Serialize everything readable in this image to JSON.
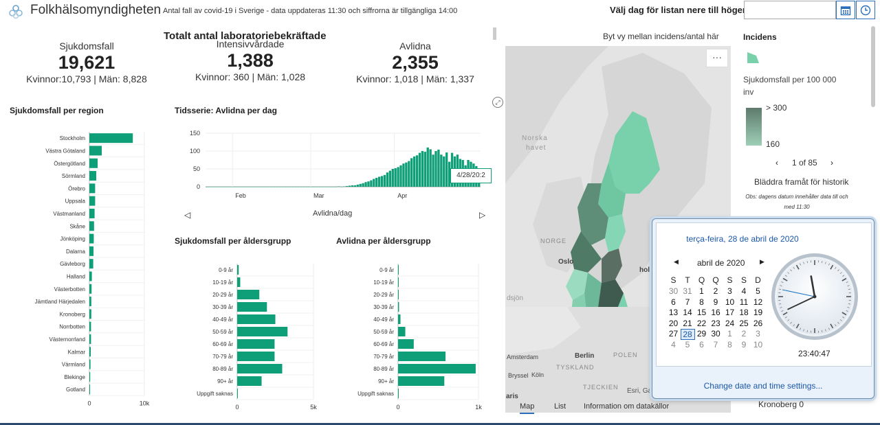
{
  "header": {
    "title": "Folkhälsomyndigheten",
    "subtitle": "Antal fall av covid-19 i Sverige - data uppdateras 11:30 och siffrorna är tillgängliga 14:00",
    "date_prompt": "Välj dag för listan nere till höger:",
    "date_value": ""
  },
  "stats": {
    "panel_title": "Totalt antal laboratoriebekräftade",
    "cases": {
      "label": "Sjukdomsfall",
      "value": "19,621",
      "detail": "Kvinnor:10,793 | Män: 8,828"
    },
    "icu": {
      "label": "Intensivvårdade",
      "value": "1,388",
      "detail": "Kvinnor: 360 | Män: 1,028"
    },
    "deaths": {
      "label": "Avlidna",
      "value": "2,355",
      "detail": "Kvinnor: 1,018 | Män: 1,337"
    }
  },
  "region_chart_title": "Sjukdomsfall per region",
  "timeseries_title": "Tidsserie: Avlidna per dag",
  "timeseries_footer": "Avlidna/dag",
  "timeseries_tooltip": "4/28/20:2",
  "age_cases_title": "Sjukdomsfall per åldersgrupp",
  "age_deaths_title": "Avlidna per åldersgrupp",
  "chart_data": [
    {
      "type": "bar",
      "orientation": "horizontal",
      "title": "Sjukdomsfall per region",
      "categories": [
        "Stockholm",
        "Västra Götaland",
        "Östergötland",
        "Sörmland",
        "Örebro",
        "Uppsala",
        "Västmanland",
        "Skåne",
        "Jönköping",
        "Dalarna",
        "Gävleborg",
        "Halland",
        "Västerbotten",
        "Jämtland Härjedalen",
        "Kronoberg",
        "Norrbotten",
        "Västernorrland",
        "Kalmar",
        "Värmland",
        "Blekinge",
        "Gotland"
      ],
      "values": [
        7900,
        2250,
        1500,
        1250,
        1050,
        1050,
        950,
        850,
        800,
        750,
        700,
        450,
        400,
        350,
        350,
        300,
        300,
        250,
        200,
        150,
        30
      ],
      "xlim": [
        0,
        10000
      ],
      "xticks": [
        "0",
        "10k"
      ],
      "color": "#0e9e78"
    },
    {
      "type": "bar",
      "title": "Tidsserie: Avlidna per dag",
      "x_start": "2020-01-22",
      "values": [
        0,
        0,
        0,
        0,
        0,
        0,
        0,
        0,
        0,
        0,
        0,
        0,
        0,
        0,
        0,
        0,
        0,
        0,
        0,
        0,
        0,
        0,
        0,
        0,
        0,
        0,
        0,
        0,
        0,
        0,
        0,
        0,
        0,
        0,
        0,
        0,
        0,
        0,
        0,
        0,
        0,
        0,
        0,
        0,
        0,
        0,
        0,
        0,
        0,
        1,
        0,
        1,
        2,
        3,
        4,
        4,
        6,
        8,
        10,
        13,
        15,
        18,
        22,
        25,
        28,
        30,
        33,
        40,
        45,
        50,
        52,
        55,
        60,
        65,
        68,
        72,
        80,
        85,
        88,
        95,
        100,
        98,
        110,
        105,
        90,
        100,
        104,
        90,
        85,
        96,
        70,
        95,
        85,
        90,
        78,
        75,
        60,
        75,
        70,
        65,
        58,
        50
      ],
      "xticks": [
        "Feb",
        "Mar",
        "Apr"
      ],
      "yticks": [
        0,
        50,
        100,
        150
      ],
      "ylim": [
        0,
        150
      ],
      "color": "#0e9e78"
    },
    {
      "type": "bar",
      "orientation": "horizontal",
      "title": "Sjukdomsfall per åldersgrupp",
      "categories": [
        "0-9 år",
        "10-19 år",
        "20-29 år",
        "30-39 år",
        "40-49 år",
        "50-59 år",
        "60-69 år",
        "70-79 år",
        "80-89 år",
        "90+ år",
        "Uppgift saknas"
      ],
      "values": [
        100,
        200,
        1450,
        1950,
        2500,
        3300,
        2450,
        2450,
        2950,
        1600,
        10
      ],
      "xlim": [
        0,
        5000
      ],
      "xticks": [
        "0",
        "5k"
      ],
      "color": "#0e9e78"
    },
    {
      "type": "bar",
      "orientation": "horizontal",
      "title": "Avlidna per åldersgrupp",
      "categories": [
        "0-9 år",
        "10-19 år",
        "20-29 år",
        "30-39 år",
        "40-49 år",
        "50-59 år",
        "60-69 år",
        "70-79 år",
        "80-89 år",
        "90+ år",
        "Uppgift saknas"
      ],
      "values": [
        1,
        1,
        8,
        12,
        30,
        90,
        195,
        590,
        965,
        575,
        0
      ],
      "xlim": [
        0,
        1000
      ],
      "xticks": [
        "0",
        "1k"
      ],
      "color": "#0e9e78"
    }
  ],
  "map": {
    "hint": "Byt vy mellan incidens/antal här",
    "menu": "···",
    "labels": {
      "norska_havet_1": "Norska",
      "norska_havet_2": "havet",
      "norge": "NORGE",
      "oslo": "Oslo",
      "holm": "holm",
      "sjon": "dsjön",
      "amsterdam": "Amsterdam",
      "berlin": "Berlin",
      "polen": "POLEN",
      "tyskland": "TYSKLAND",
      "bryssel": "Bryssel",
      "koln": "Köln",
      "tjeckien": "TJECKIEN",
      "aris": "aris",
      "esri": "Esri, Ga"
    },
    "tabs": [
      "Map",
      "List",
      "Information om datakällor"
    ]
  },
  "legend": {
    "title": "Incidens",
    "description": "Sjukdomsfall per 100 000 inv",
    "high": "> 300",
    "low": "160",
    "pager": "1 of 85",
    "history_note": "Bläddra framåt för historik",
    "obs": "Obs: dagens datum innehåller data till och med 11:30",
    "list_row": "Kronoberg  0"
  },
  "datetime_popup": {
    "long_date": "terça-feira, 28 de abril de 2020",
    "month_label": "abril de 2020",
    "weekdays": [
      "S",
      "T",
      "Q",
      "Q",
      "S",
      "S",
      "D"
    ],
    "weeks": [
      [
        "30",
        "31",
        "1",
        "2",
        "3",
        "4",
        "5"
      ],
      [
        "6",
        "7",
        "8",
        "9",
        "10",
        "11",
        "12"
      ],
      [
        "13",
        "14",
        "15",
        "16",
        "17",
        "18",
        "19"
      ],
      [
        "20",
        "21",
        "22",
        "23",
        "24",
        "25",
        "26"
      ],
      [
        "27",
        "28",
        "29",
        "30",
        "1",
        "2",
        "3"
      ],
      [
        "4",
        "5",
        "6",
        "7",
        "8",
        "9",
        "10"
      ]
    ],
    "selected_day": "28",
    "time": "23:40:47",
    "settings_link": "Change date and time settings...",
    "clock_hours": 11,
    "clock_minutes": 40,
    "clock_seconds": 47
  },
  "colors": {
    "bar": "#0e9e78",
    "accent": "#2a6ebb",
    "map_dark": "#5e7a6c",
    "map_light": "#7fd3b0"
  }
}
